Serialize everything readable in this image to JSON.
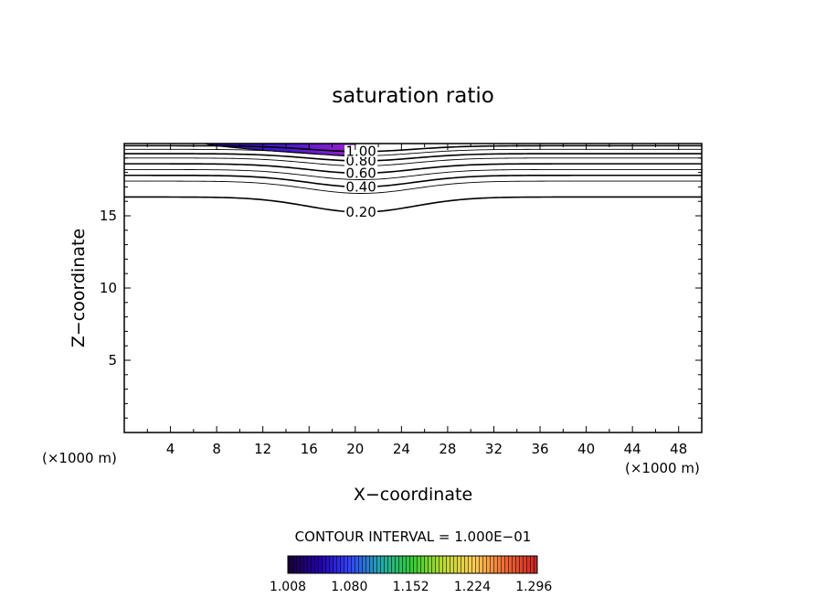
{
  "chart_data": {
    "type": "contour",
    "title": "saturation ratio",
    "xlabel": "X−coordinate",
    "ylabel": "Z−coordinate",
    "x_unit_left": "(×1000 m)",
    "x_unit_right": "(×1000 m)",
    "xlim": [
      0,
      50
    ],
    "ylim": [
      0,
      20
    ],
    "x_ticks": [
      "4",
      "8",
      "12",
      "16",
      "20",
      "24",
      "28",
      "32",
      "36",
      "40",
      "44",
      "48"
    ],
    "y_ticks": [
      "5",
      "10",
      "15"
    ],
    "contour_interval_text": "CONTOUR INTERVAL = 1.000E−01",
    "contour_levels": [
      0.2,
      0.3,
      0.4,
      0.5,
      0.6,
      0.7,
      0.8,
      0.9,
      1.0
    ],
    "contour_labels": [
      "0.20",
      "0.40",
      "0.60",
      "0.80",
      "1.00"
    ],
    "contours": [
      {
        "level": 0.2,
        "z_far": 16.3,
        "dip": 1.05
      },
      {
        "level": 0.3,
        "z_far": 17.4,
        "dip": 0.85
      },
      {
        "level": 0.4,
        "z_far": 17.8,
        "dip": 0.8
      },
      {
        "level": 0.5,
        "z_far": 18.2,
        "dip": 0.7
      },
      {
        "level": 0.6,
        "z_far": 18.6,
        "dip": 0.65
      },
      {
        "level": 0.7,
        "z_far": 19.0,
        "dip": 0.55
      },
      {
        "level": 0.8,
        "z_far": 19.3,
        "dip": 0.5
      },
      {
        "level": 0.9,
        "z_far": 19.6,
        "dip": 0.45
      },
      {
        "level": 1.0,
        "z_far": 19.85,
        "dip": 0.4
      }
    ],
    "dip_center_x": 20.5,
    "dip_width": 6.5,
    "supersaturated_region": {
      "x_start": 7,
      "x_end": 20,
      "z_bottom_min": 19.1,
      "z_top": 20
    },
    "colorbar": {
      "range": [
        1.008,
        1.3
      ],
      "labels": [
        "1.008",
        "1.080",
        "1.152",
        "1.224",
        "1.296"
      ],
      "colors": [
        "#1a0033",
        "#2200aa",
        "#3344ff",
        "#22aaaa",
        "#33cc33",
        "#bbdd33",
        "#ffcc55",
        "#ee6633",
        "#cc2222"
      ]
    },
    "grid": false,
    "legend": "colorbar-bottom"
  }
}
